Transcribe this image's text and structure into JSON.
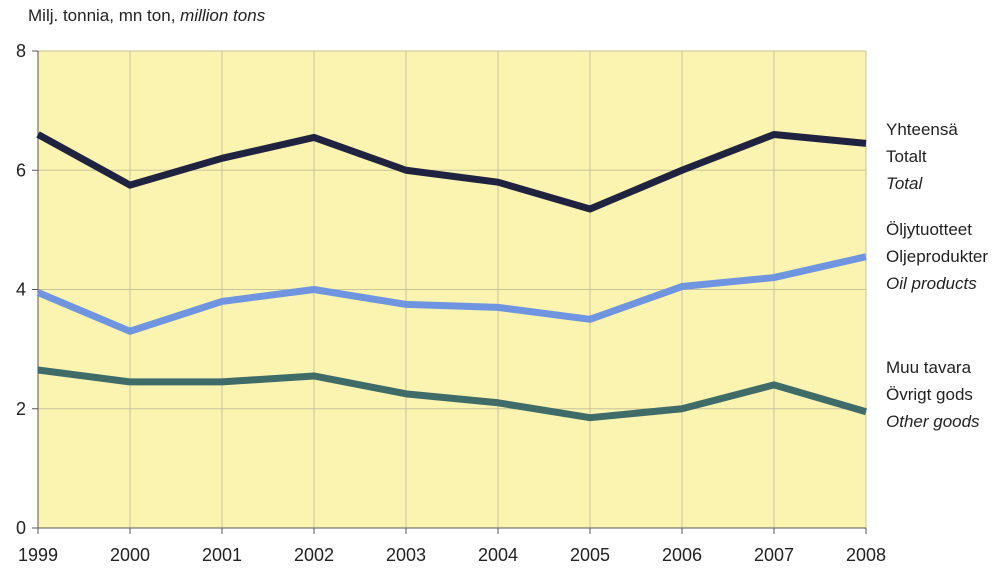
{
  "chart_data": {
    "type": "line",
    "unit_label": {
      "fi": "Milj. tonnia,",
      "sv": "mn ton,",
      "en": "million tons"
    },
    "x": [
      "1999",
      "2000",
      "2001",
      "2002",
      "2003",
      "2004",
      "2005",
      "2006",
      "2007",
      "2008"
    ],
    "ylim": [
      0,
      8
    ],
    "yticks": [
      "0",
      "2",
      "4",
      "6",
      "8"
    ],
    "grid": true,
    "plot_background": "#fbf3b0",
    "legend_placement": "right",
    "series": [
      {
        "name_fi": "Yhteensä",
        "name_sv": "Totalt",
        "name_en": "Total",
        "color": "#1f2340",
        "values": [
          6.6,
          5.75,
          6.2,
          6.55,
          6.0,
          5.8,
          5.35,
          6.0,
          6.6,
          6.45
        ]
      },
      {
        "name_fi": "Öljytuotteet",
        "name_sv": "Oljeprodukter",
        "name_en": "Oil products",
        "color": "#6f95e0",
        "values": [
          3.95,
          3.3,
          3.8,
          4.0,
          3.75,
          3.7,
          3.5,
          4.05,
          4.2,
          4.55
        ]
      },
      {
        "name_fi": "Muu tavara",
        "name_sv": "Övrigt gods",
        "name_en": "Other goods",
        "color": "#3f6b69",
        "values": [
          2.65,
          2.45,
          2.45,
          2.55,
          2.25,
          2.1,
          1.85,
          2.0,
          2.4,
          1.95
        ]
      }
    ]
  }
}
